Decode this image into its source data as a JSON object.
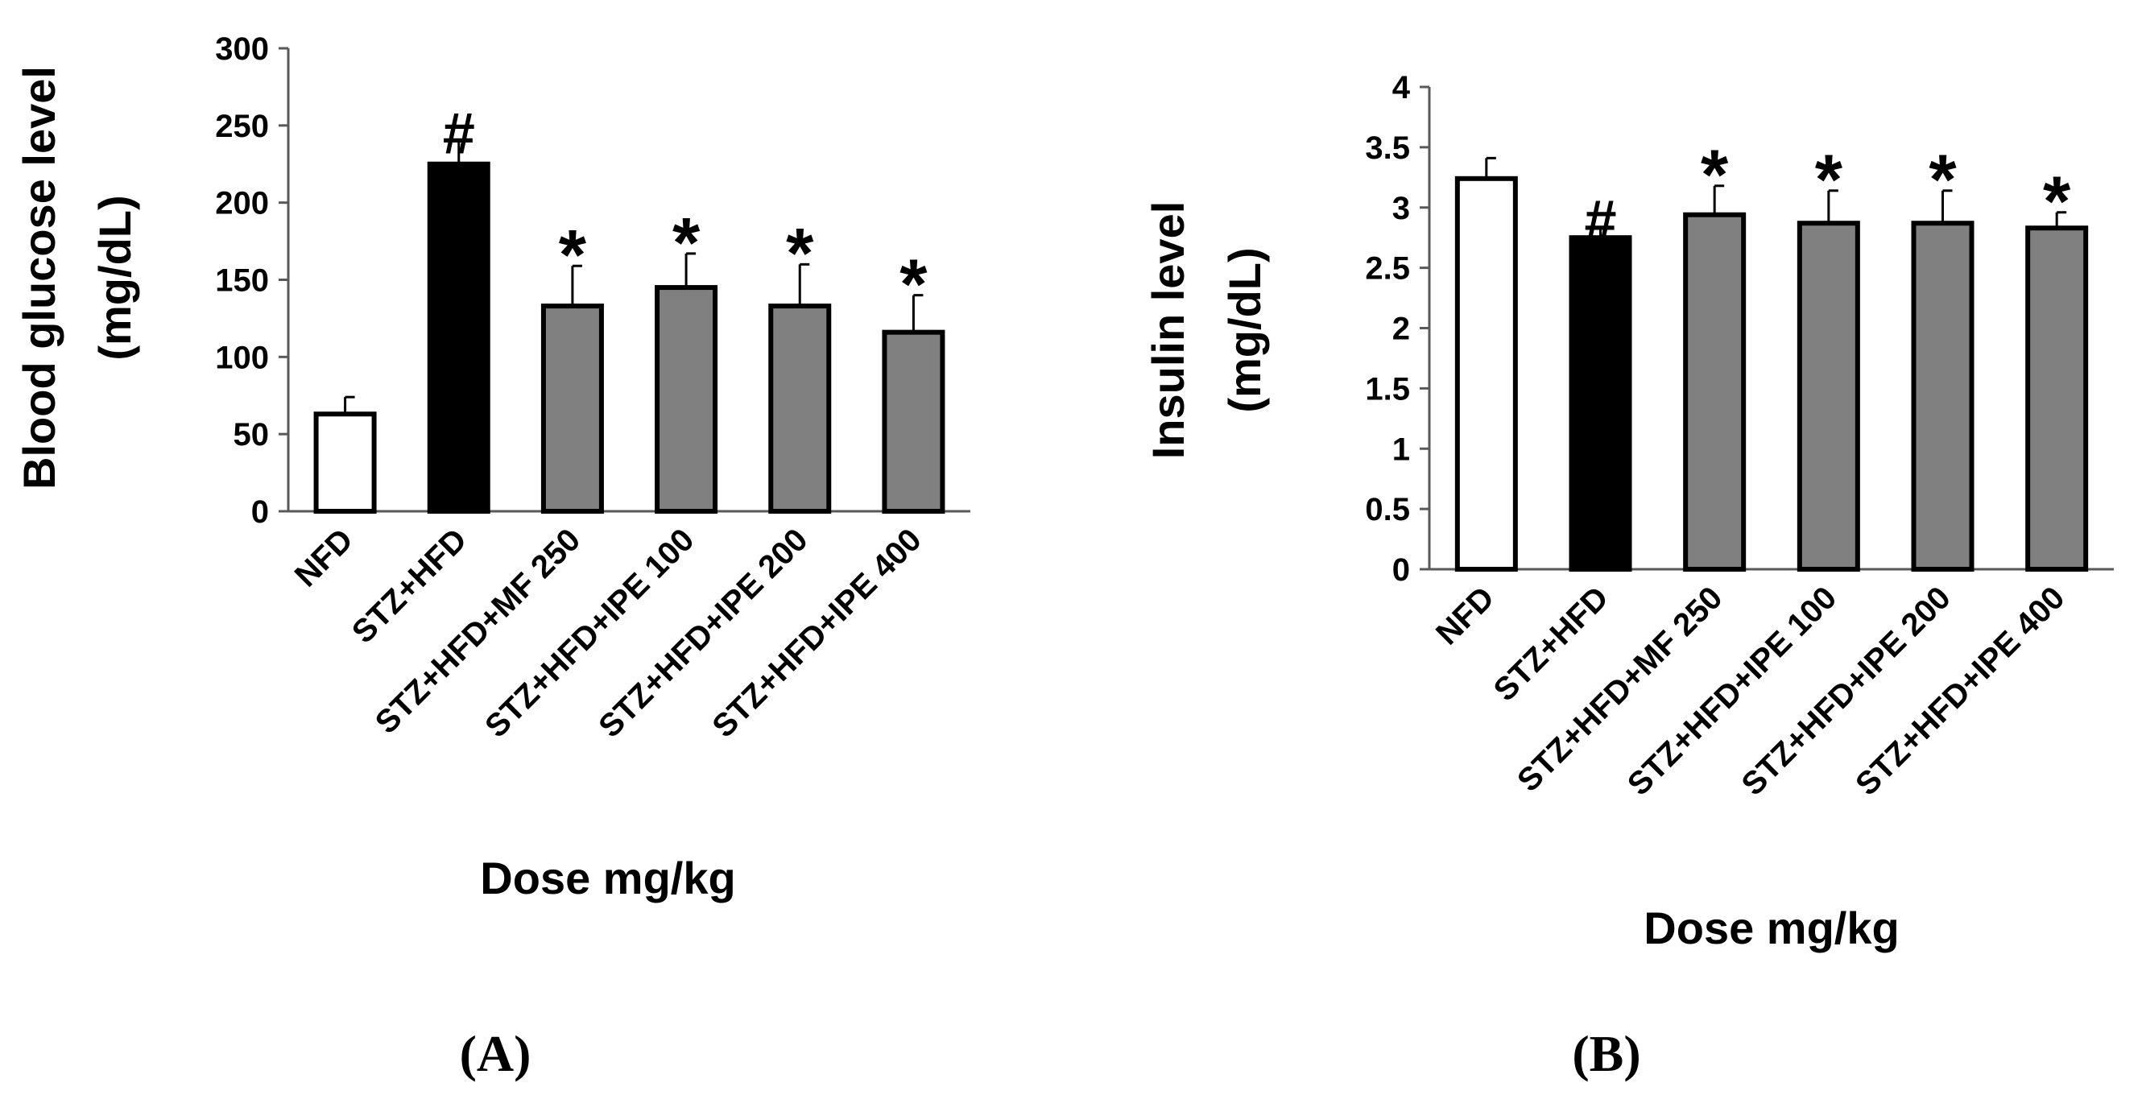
{
  "chart_data": [
    {
      "type": "bar",
      "panel_label": "(A)",
      "title": "",
      "ylabel_lines": [
        "Blood glucose level",
        "(mg/dL)"
      ],
      "xlabel": "Dose mg/kg",
      "categories": [
        "NFD",
        "STZ+HFD",
        "STZ+HFD+MF 250",
        "STZ+HFD+IPE 100",
        "STZ+HFD+IPE 200",
        "STZ+HFD+IPE 400"
      ],
      "values": [
        63,
        225,
        133,
        145,
        133,
        116
      ],
      "errors": [
        11,
        15,
        26,
        22,
        27,
        24
      ],
      "significance": [
        "",
        "#",
        "*",
        "*",
        "*",
        "*"
      ],
      "bar_colors": [
        "#ffffff",
        "#000000",
        "#808080",
        "#808080",
        "#808080",
        "#808080"
      ],
      "ylim": [
        0,
        300
      ],
      "yticks": [
        "0",
        "50",
        "100",
        "150",
        "200",
        "250",
        "300"
      ],
      "grid": false
    },
    {
      "type": "bar",
      "panel_label": "(B)",
      "title": "",
      "ylabel_lines": [
        "Insulin level",
        "(mg/dL)"
      ],
      "xlabel": "Dose mg/kg",
      "categories": [
        "NFD",
        "STZ+HFD",
        "STZ+HFD+MF 250",
        "STZ+HFD+IPE 100",
        "STZ+HFD+IPE 200",
        "STZ+HFD+IPE 400"
      ],
      "values": [
        3.24,
        2.75,
        2.94,
        2.87,
        2.87,
        2.83
      ],
      "errors": [
        0.17,
        0.08,
        0.24,
        0.27,
        0.27,
        0.13
      ],
      "significance": [
        "",
        "#",
        "*",
        "*",
        "*",
        "*"
      ],
      "bar_colors": [
        "#ffffff",
        "#000000",
        "#808080",
        "#808080",
        "#808080",
        "#808080"
      ],
      "ylim": [
        0,
        4
      ],
      "yticks": [
        "0",
        "0.5",
        "1",
        "1.5",
        "2",
        "2.5",
        "3",
        "3.5",
        "4"
      ],
      "grid": false
    }
  ]
}
